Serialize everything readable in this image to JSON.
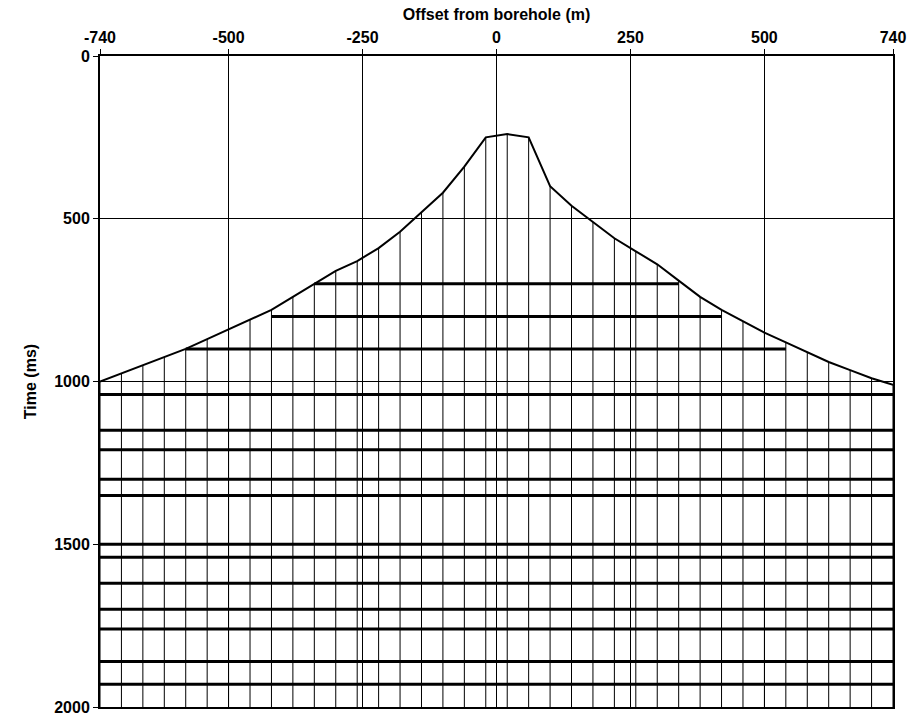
{
  "chart_data": {
    "type": "seismic",
    "x_label": "Offset from borehole (m)",
    "y_label": "Time (ms)",
    "xlim": [
      -740,
      740
    ],
    "ylim": [
      2000,
      0
    ],
    "xticks": [
      -740,
      -500,
      -250,
      0,
      250,
      500,
      740
    ],
    "yticks": [
      0,
      500,
      1000,
      1500,
      2000
    ],
    "grid": true,
    "color": "#000000",
    "x": [
      -740,
      -700,
      -660,
      -620,
      -580,
      -540,
      -500,
      -460,
      -420,
      -380,
      -340,
      -300,
      -260,
      -220,
      -180,
      -140,
      -100,
      -60,
      -20,
      20,
      60,
      100,
      140,
      180,
      220,
      260,
      300,
      340,
      380,
      420,
      460,
      500,
      540,
      580,
      620,
      660,
      700,
      740
    ],
    "first_arrival": [
      1000,
      975,
      950,
      925,
      900,
      870,
      840,
      810,
      780,
      740,
      700,
      660,
      630,
      590,
      540,
      480,
      420,
      340,
      250,
      240,
      250,
      400,
      460,
      510,
      560,
      600,
      640,
      690,
      740,
      780,
      815,
      850,
      880,
      910,
      940,
      965,
      990,
      1010
    ],
    "events": [
      700,
      800,
      900,
      1040,
      1150,
      1210,
      1300,
      1350,
      1500,
      1540,
      1620,
      1700,
      1760,
      1860,
      1930
    ]
  }
}
